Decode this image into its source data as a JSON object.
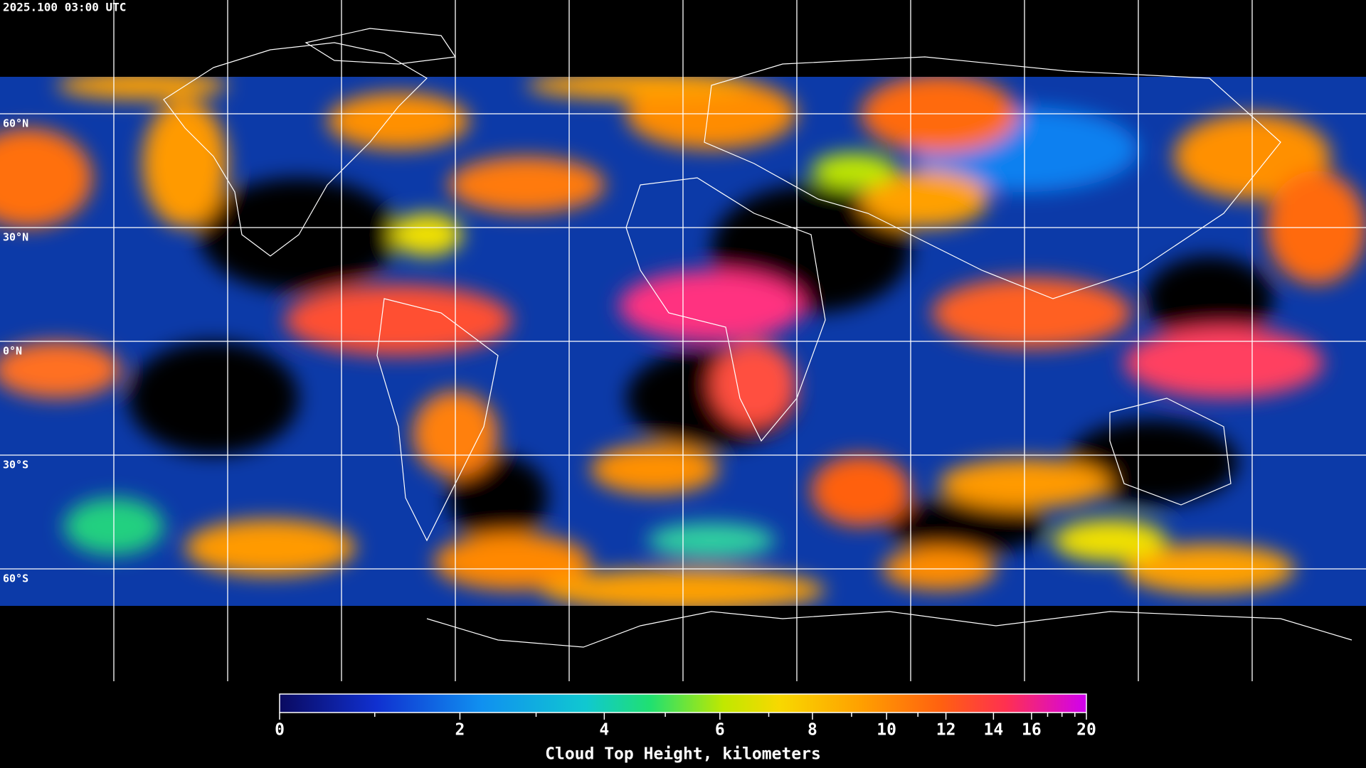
{
  "header": {
    "timestamp": "2025.100 03:00 UTC"
  },
  "map": {
    "lat_labels": [
      "60°N",
      "30°N",
      "0°N",
      "30°S",
      "60°S"
    ]
  },
  "colorbar": {
    "title": "Cloud Top Height, kilometers",
    "range": [
      0,
      20
    ],
    "ticks": [
      0,
      2,
      4,
      6,
      8,
      10,
      12,
      14,
      16,
      20
    ],
    "minor_ticks": [
      1,
      3,
      5,
      7,
      9,
      11,
      17,
      18,
      19
    ]
  }
}
